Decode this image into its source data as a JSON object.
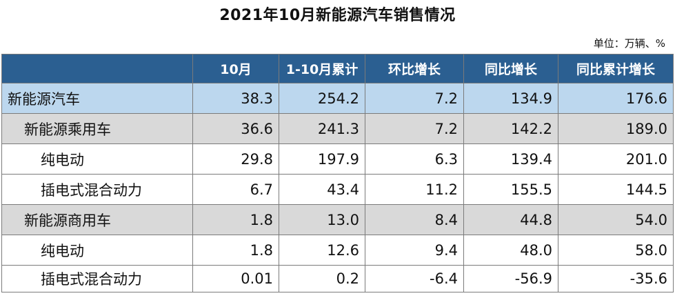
{
  "title": "2021年10月新能源汽车销售情况",
  "unit": "单位：万辆、%",
  "table": {
    "headers": [
      "",
      "10月",
      "1-10月累计",
      "环比增长",
      "同比增长",
      "同比累计增长"
    ],
    "rows": [
      {
        "level": 0,
        "label": "新能源汽车",
        "values": [
          "38.3",
          "254.2",
          "7.2",
          "134.9",
          "176.6"
        ]
      },
      {
        "level": 1,
        "label": "新能源乘用车",
        "values": [
          "36.6",
          "241.3",
          "7.2",
          "142.2",
          "189.0"
        ]
      },
      {
        "level": 2,
        "label": "纯电动",
        "values": [
          "29.8",
          "197.9",
          "6.3",
          "139.4",
          "201.0"
        ]
      },
      {
        "level": 2,
        "label": "插电式混合动力",
        "values": [
          "6.7",
          "43.4",
          "11.2",
          "155.5",
          "144.5"
        ]
      },
      {
        "level": 1,
        "label": "新能源商用车",
        "values": [
          "1.8",
          "13.0",
          "8.4",
          "44.8",
          "54.0"
        ]
      },
      {
        "level": 2,
        "label": "纯电动",
        "values": [
          "1.8",
          "12.6",
          "9.4",
          "48.0",
          "58.0"
        ]
      },
      {
        "level": 2,
        "label": "插电式混合动力",
        "values": [
          "0.01",
          "0.2",
          "-6.4",
          "-56.9",
          "-35.6"
        ]
      }
    ]
  }
}
